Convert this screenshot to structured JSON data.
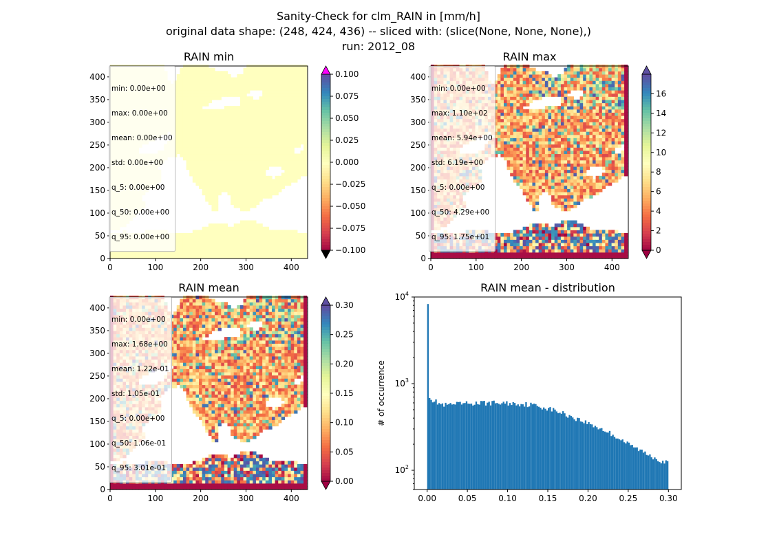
{
  "figure": {
    "suptitle_lines": [
      "Sanity-Check for clm_RAIN in [mm/h]",
      "original data shape: (248, 424, 436) -- sliced with: (slice(None, None, None),)",
      "run: 2012_08"
    ]
  },
  "chart_data": [
    {
      "type": "heatmap",
      "title": "RAIN min",
      "xlim": [
        0,
        436
      ],
      "ylim": [
        0,
        424
      ],
      "xticks": [
        0,
        100,
        200,
        300,
        400
      ],
      "yticks": [
        0,
        50,
        100,
        150,
        200,
        250,
        300,
        350,
        400
      ],
      "colorbar": {
        "colormap": "Spectral",
        "range": [
          -0.1,
          0.1
        ],
        "ticks": [
          "0.100",
          "0.075",
          "0.050",
          "0.025",
          "0.000",
          "−0.025",
          "−0.050",
          "−0.075",
          "−0.100"
        ],
        "extend": "both",
        "over_color": "#ff00ff",
        "under_color": "#000000"
      },
      "field_color": "#ffffbf",
      "stats": [
        "min: 0.00e+00",
        "max: 0.00e+00",
        "mean: 0.00e+00",
        "std: 0.00e+00",
        "q_5: 0.00e+00",
        "q_50: 0.00e+00",
        "q_95: 0.00e+00"
      ]
    },
    {
      "type": "heatmap",
      "title": "RAIN max",
      "xlim": [
        0,
        436
      ],
      "ylim": [
        0,
        424
      ],
      "xticks": [
        0,
        100,
        200,
        300,
        400
      ],
      "yticks": [
        0,
        50,
        100,
        150,
        200,
        250,
        300,
        350,
        400
      ],
      "colorbar": {
        "colormap": "Spectral",
        "range": [
          0,
          18
        ],
        "ticks": [
          "0",
          "2",
          "4",
          "6",
          "8",
          "10",
          "12",
          "14",
          "16"
        ],
        "extend": "both"
      },
      "stats": [
        "min: 0.00e+00",
        "max: 1.10e+02",
        "mean: 5.94e+00",
        "std: 6.19e+00",
        "q_5: 0.00e+00",
        "q_50: 4.29e+00",
        "q_95: 1.75e+01"
      ]
    },
    {
      "type": "heatmap",
      "title": "RAIN mean",
      "xlim": [
        0,
        436
      ],
      "ylim": [
        0,
        424
      ],
      "xticks": [
        0,
        100,
        200,
        300,
        400
      ],
      "yticks": [
        0,
        50,
        100,
        150,
        200,
        250,
        300,
        350,
        400
      ],
      "colorbar": {
        "colormap": "Spectral",
        "range": [
          0,
          0.3
        ],
        "ticks": [
          "0.00",
          "0.05",
          "0.10",
          "0.15",
          "0.20",
          "0.25",
          "0.30"
        ],
        "extend": "both"
      },
      "stats": [
        "min: 0.00e+00",
        "max: 1.68e+00",
        "mean: 1.22e-01",
        "std: 1.05e-01",
        "q_5: 0.00e+00",
        "q_50: 1.06e-01",
        "q_95: 3.01e-01"
      ]
    },
    {
      "type": "bar",
      "title": "RAIN mean - distribution",
      "xlabel": "",
      "ylabel": "# of occurrence",
      "xlim": [
        -0.016,
        0.316
      ],
      "ylim": [
        60,
        10000
      ],
      "log_y": true,
      "xticks": [
        "0.00",
        "0.05",
        "0.10",
        "0.15",
        "0.20",
        "0.25",
        "0.30"
      ],
      "yticks": [
        "10^2",
        "10^3",
        "10^4"
      ],
      "bar_color": "#1f77b4",
      "bin_range": [
        0,
        0.3
      ],
      "bins": 150,
      "first_bin_count": 8300,
      "profile": [
        [
          0.002,
          760
        ],
        [
          0.006,
          650
        ],
        [
          0.02,
          560
        ],
        [
          0.05,
          590
        ],
        [
          0.08,
          600
        ],
        [
          0.11,
          590
        ],
        [
          0.13,
          570
        ],
        [
          0.15,
          520
        ],
        [
          0.17,
          450
        ],
        [
          0.19,
          380
        ],
        [
          0.21,
          320
        ],
        [
          0.23,
          260
        ],
        [
          0.25,
          200
        ],
        [
          0.27,
          160
        ],
        [
          0.29,
          130
        ],
        [
          0.3,
          120
        ]
      ]
    }
  ]
}
